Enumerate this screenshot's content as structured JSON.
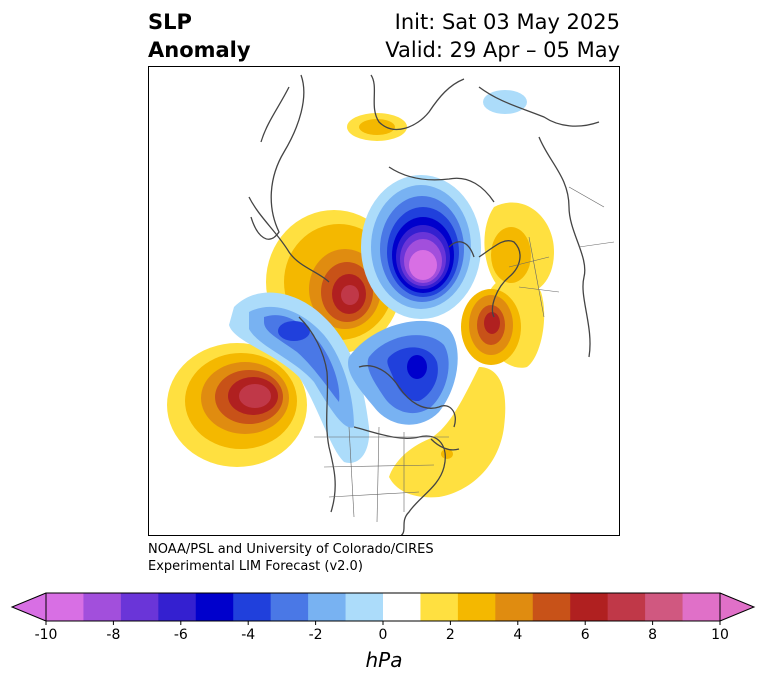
{
  "title": {
    "left_line1": "SLP",
    "left_line2": "Anomaly",
    "right_line1": "Init: Sat 03 May 2025",
    "right_line2": "Valid: 29 Apr – 05 May"
  },
  "credit": {
    "line1": "NOAA/PSL and University of Colorado/CIRES",
    "line2": "Experimental LIM Forecast (v2.0)"
  },
  "colorbar": {
    "unit": "hPa",
    "ticks": [
      "-10",
      "-8",
      "-6",
      "-4",
      "-2",
      "0",
      "2",
      "4",
      "6",
      "8",
      "10"
    ],
    "colors": [
      "#d86fe4",
      "#a24fdc",
      "#6a35d8",
      "#3420d0",
      "#0000cc",
      "#2040dc",
      "#4a78e6",
      "#78b2f2",
      "#acdcfa",
      "#ffffff",
      "#ffe040",
      "#f4b800",
      "#e08c10",
      "#c85218",
      "#b02020",
      "#c03848",
      "#d05880",
      "#e070c8"
    ],
    "extend_low_color": "#d86fe4",
    "extend_high_color": "#e070c8"
  },
  "map": {
    "projection": "polar stereographic (Northern Hemisphere)",
    "features": [
      {
        "name": "negative anomaly over Arctic/Siberia",
        "min_hpa": -10
      },
      {
        "name": "negative anomaly over Hudson Bay",
        "min_hpa": -6
      },
      {
        "name": "negative anomaly over Alaska/Gulf",
        "min_hpa": -4
      },
      {
        "name": "positive anomaly over North Pacific",
        "max_hpa": 7
      },
      {
        "name": "positive anomaly over Bering/Kamchatka",
        "max_hpa": 7
      },
      {
        "name": "positive anomaly over Greenland Sea/Scandinavia",
        "max_hpa": 6
      },
      {
        "name": "positive anomaly over Europe",
        "max_hpa": 3
      }
    ]
  }
}
